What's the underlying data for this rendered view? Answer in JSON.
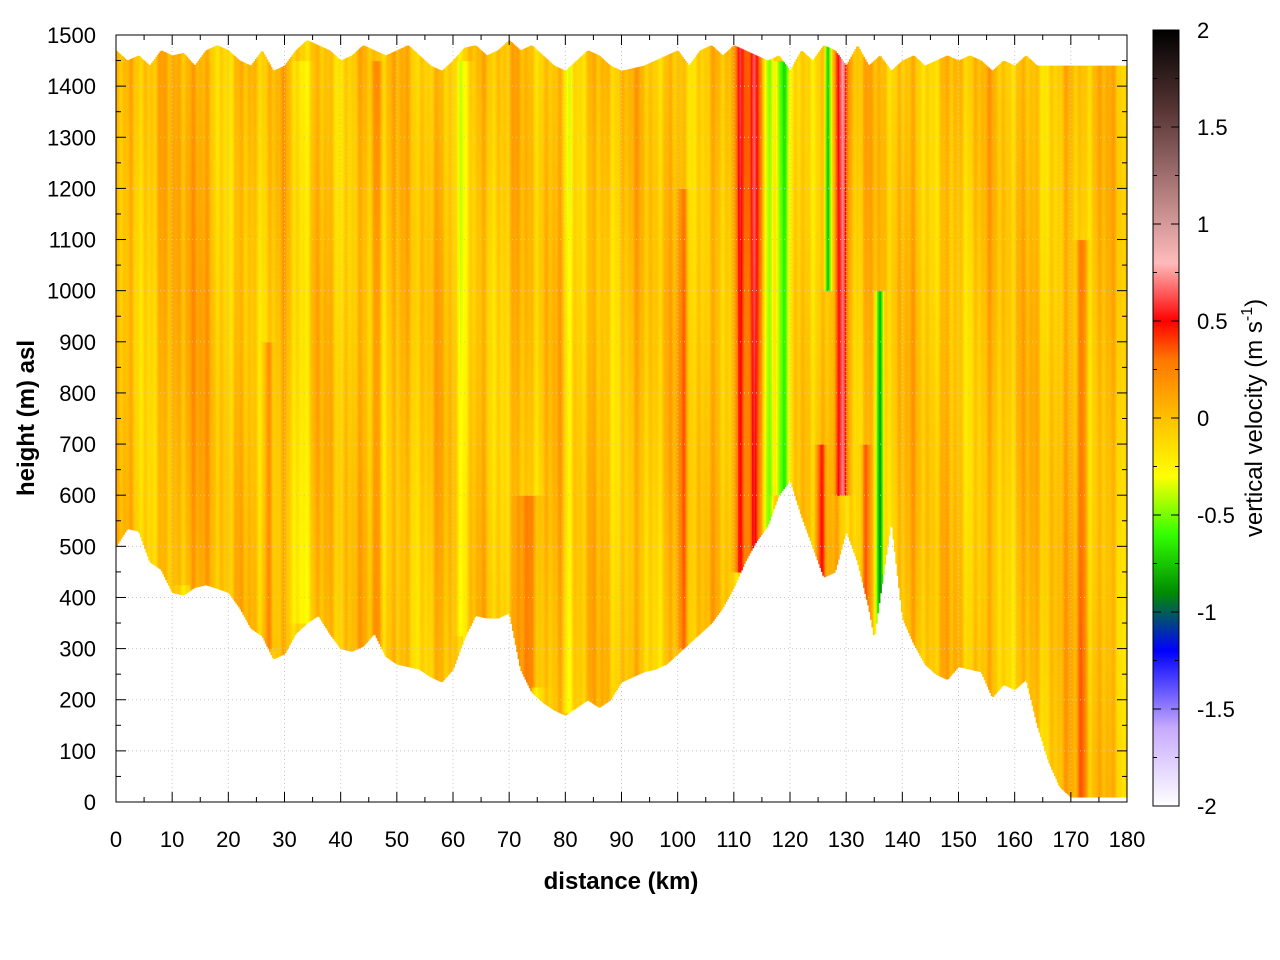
{
  "chart_data": {
    "type": "heatmap",
    "title": "",
    "xlabel": "distance (km)",
    "ylabel": "height (m) asl",
    "xlim": [
      0,
      180
    ],
    "ylim": [
      0,
      1500
    ],
    "x_ticks": [
      "0",
      "10",
      "20",
      "30",
      "40",
      "50",
      "60",
      "70",
      "80",
      "90",
      "100",
      "110",
      "120",
      "130",
      "140",
      "150",
      "160",
      "170",
      "180"
    ],
    "y_ticks": [
      "0",
      "100",
      "200",
      "300",
      "400",
      "500",
      "600",
      "700",
      "800",
      "900",
      "1000",
      "1100",
      "1200",
      "1300",
      "1400",
      "1500"
    ],
    "grid": true,
    "colorbar": {
      "label": "vertical velocity (m s",
      "label_sup": "-1",
      "label_end": ")",
      "range": [
        -2,
        2
      ],
      "ticks": [
        "-2",
        "-1.5",
        "-1",
        "-0.5",
        "0",
        "0.5",
        "1",
        "1.5",
        "2"
      ],
      "colors": [
        {
          "v": -2.0,
          "c": "#ffffff"
        },
        {
          "v": -1.6,
          "c": "#c8aaff"
        },
        {
          "v": -1.2,
          "c": "#0000ff"
        },
        {
          "v": -0.9,
          "c": "#008c00"
        },
        {
          "v": -0.6,
          "c": "#33ff00"
        },
        {
          "v": -0.3,
          "c": "#ffff00"
        },
        {
          "v": 0.0,
          "c": "#ffc000"
        },
        {
          "v": 0.3,
          "c": "#ff7700"
        },
        {
          "v": 0.5,
          "c": "#ff0000"
        },
        {
          "v": 0.8,
          "c": "#ffbbbb"
        },
        {
          "v": 1.2,
          "c": "#aa7777"
        },
        {
          "v": 1.6,
          "c": "#553333"
        },
        {
          "v": 2.0,
          "c": "#000000"
        }
      ]
    },
    "terrain_bottom": [
      [
        0,
        500
      ],
      [
        2,
        535
      ],
      [
        4,
        530
      ],
      [
        6,
        470
      ],
      [
        8,
        455
      ],
      [
        10,
        410
      ],
      [
        12,
        405
      ],
      [
        14,
        420
      ],
      [
        16,
        425
      ],
      [
        18,
        418
      ],
      [
        20,
        410
      ],
      [
        22,
        380
      ],
      [
        24,
        340
      ],
      [
        26,
        325
      ],
      [
        28,
        280
      ],
      [
        30,
        290
      ],
      [
        32,
        330
      ],
      [
        34,
        350
      ],
      [
        36,
        365
      ],
      [
        38,
        330
      ],
      [
        40,
        300
      ],
      [
        42,
        295
      ],
      [
        44,
        305
      ],
      [
        46,
        330
      ],
      [
        48,
        285
      ],
      [
        50,
        270
      ],
      [
        52,
        265
      ],
      [
        54,
        260
      ],
      [
        56,
        245
      ],
      [
        58,
        235
      ],
      [
        60,
        260
      ],
      [
        62,
        320
      ],
      [
        64,
        365
      ],
      [
        66,
        360
      ],
      [
        68,
        360
      ],
      [
        70,
        370
      ],
      [
        72,
        260
      ],
      [
        74,
        215
      ],
      [
        76,
        195
      ],
      [
        78,
        180
      ],
      [
        80,
        170
      ],
      [
        82,
        185
      ],
      [
        84,
        200
      ],
      [
        86,
        185
      ],
      [
        88,
        200
      ],
      [
        90,
        235
      ],
      [
        92,
        245
      ],
      [
        94,
        255
      ],
      [
        96,
        260
      ],
      [
        98,
        270
      ],
      [
        100,
        290
      ],
      [
        102,
        310
      ],
      [
        104,
        330
      ],
      [
        106,
        350
      ],
      [
        108,
        380
      ],
      [
        110,
        420
      ],
      [
        112,
        470
      ],
      [
        114,
        510
      ],
      [
        116,
        540
      ],
      [
        118,
        600
      ],
      [
        120,
        630
      ],
      [
        122,
        560
      ],
      [
        124,
        500
      ],
      [
        126,
        440
      ],
      [
        128,
        450
      ],
      [
        130,
        530
      ],
      [
        132,
        470
      ],
      [
        134,
        380
      ],
      [
        135,
        320
      ],
      [
        136,
        400
      ],
      [
        138,
        550
      ],
      [
        140,
        360
      ],
      [
        142,
        310
      ],
      [
        144,
        270
      ],
      [
        146,
        250
      ],
      [
        148,
        240
      ],
      [
        150,
        265
      ],
      [
        152,
        260
      ],
      [
        154,
        255
      ],
      [
        156,
        205
      ],
      [
        158,
        230
      ],
      [
        160,
        220
      ],
      [
        162,
        240
      ],
      [
        164,
        150
      ],
      [
        166,
        80
      ],
      [
        168,
        30
      ],
      [
        170,
        10
      ],
      [
        180,
        10
      ]
    ],
    "terrain_top": [
      [
        0,
        1470
      ],
      [
        2,
        1450
      ],
      [
        4,
        1460
      ],
      [
        6,
        1440
      ],
      [
        8,
        1470
      ],
      [
        10,
        1460
      ],
      [
        12,
        1465
      ],
      [
        14,
        1440
      ],
      [
        16,
        1470
      ],
      [
        18,
        1480
      ],
      [
        20,
        1470
      ],
      [
        22,
        1450
      ],
      [
        24,
        1440
      ],
      [
        26,
        1470
      ],
      [
        28,
        1430
      ],
      [
        30,
        1440
      ],
      [
        32,
        1470
      ],
      [
        34,
        1490
      ],
      [
        36,
        1480
      ],
      [
        38,
        1470
      ],
      [
        40,
        1450
      ],
      [
        42,
        1460
      ],
      [
        44,
        1480
      ],
      [
        46,
        1470
      ],
      [
        48,
        1460
      ],
      [
        50,
        1470
      ],
      [
        52,
        1480
      ],
      [
        54,
        1460
      ],
      [
        56,
        1440
      ],
      [
        58,
        1430
      ],
      [
        60,
        1450
      ],
      [
        62,
        1475
      ],
      [
        64,
        1480
      ],
      [
        66,
        1460
      ],
      [
        68,
        1470
      ],
      [
        70,
        1490
      ],
      [
        72,
        1470
      ],
      [
        74,
        1480
      ],
      [
        76,
        1460
      ],
      [
        78,
        1440
      ],
      [
        80,
        1430
      ],
      [
        82,
        1450
      ],
      [
        84,
        1470
      ],
      [
        86,
        1460
      ],
      [
        88,
        1440
      ],
      [
        90,
        1430
      ],
      [
        92,
        1435
      ],
      [
        94,
        1440
      ],
      [
        96,
        1450
      ],
      [
        98,
        1460
      ],
      [
        100,
        1470
      ],
      [
        102,
        1440
      ],
      [
        104,
        1470
      ],
      [
        106,
        1480
      ],
      [
        108,
        1460
      ],
      [
        110,
        1480
      ],
      [
        112,
        1470
      ],
      [
        114,
        1460
      ],
      [
        116,
        1450
      ],
      [
        118,
        1460
      ],
      [
        120,
        1430
      ],
      [
        122,
        1470
      ],
      [
        124,
        1450
      ],
      [
        126,
        1480
      ],
      [
        128,
        1470
      ],
      [
        130,
        1440
      ],
      [
        132,
        1480
      ],
      [
        134,
        1440
      ],
      [
        136,
        1460
      ],
      [
        138,
        1430
      ],
      [
        140,
        1450
      ],
      [
        142,
        1460
      ],
      [
        144,
        1440
      ],
      [
        146,
        1450
      ],
      [
        148,
        1460
      ],
      [
        150,
        1450
      ],
      [
        152,
        1460
      ],
      [
        154,
        1450
      ],
      [
        156,
        1430
      ],
      [
        158,
        1450
      ],
      [
        160,
        1440
      ],
      [
        162,
        1460
      ],
      [
        164,
        1440
      ],
      [
        166,
        1440
      ],
      [
        180,
        1440
      ]
    ],
    "features": [
      {
        "x": 111.0,
        "width": 1.2,
        "v": 0.6,
        "zmin": 450,
        "zmax": 1480
      },
      {
        "x": 113.6,
        "width": 1.2,
        "v": 0.55,
        "zmin": 480,
        "zmax": 1480
      },
      {
        "x": 116.2,
        "width": 1.0,
        "v": -0.35,
        "zmin": 520,
        "zmax": 1480
      },
      {
        "x": 119.0,
        "width": 1.8,
        "v": -0.6,
        "zmin": 600,
        "zmax": 1440
      },
      {
        "x": 125.5,
        "width": 1.0,
        "v": 0.4,
        "zmin": 440,
        "zmax": 700
      },
      {
        "x": 126.8,
        "width": 0.7,
        "v": -0.7,
        "zmin": 1000,
        "zmax": 1480
      },
      {
        "x": 129.4,
        "width": 1.2,
        "v": 0.8,
        "zmin": 600,
        "zmax": 1470
      },
      {
        "x": 133.5,
        "width": 1.0,
        "v": 0.3,
        "zmin": 330,
        "zmax": 700
      },
      {
        "x": 136.0,
        "width": 0.8,
        "v": -0.85,
        "zmin": 330,
        "zmax": 1000
      },
      {
        "x": 172.0,
        "width": 1.2,
        "v": 0.35,
        "zmin": 10,
        "zmax": 1100
      },
      {
        "x": 73.5,
        "width": 2.5,
        "v": 0.3,
        "zmin": 220,
        "zmax": 600
      },
      {
        "x": 46.5,
        "width": 1.0,
        "v": 0.25,
        "zmin": 300,
        "zmax": 1440
      },
      {
        "x": 27.0,
        "width": 1.0,
        "v": 0.25,
        "zmin": 300,
        "zmax": 900
      },
      {
        "x": 62.0,
        "width": 1.5,
        "v": -0.2,
        "zmin": 320,
        "zmax": 1440
      },
      {
        "x": 33.0,
        "width": 2.0,
        "v": -0.15,
        "zmin": 350,
        "zmax": 1440
      },
      {
        "x": 101.0,
        "width": 1.0,
        "v": 0.25,
        "zmin": 300,
        "zmax": 1200
      },
      {
        "x": 80.5,
        "width": 1.0,
        "v": -0.2,
        "zmin": 180,
        "zmax": 1440
      },
      {
        "x": 13.0,
        "width": 3.0,
        "v": 0.15,
        "zmin": 420,
        "zmax": 1460
      }
    ]
  }
}
